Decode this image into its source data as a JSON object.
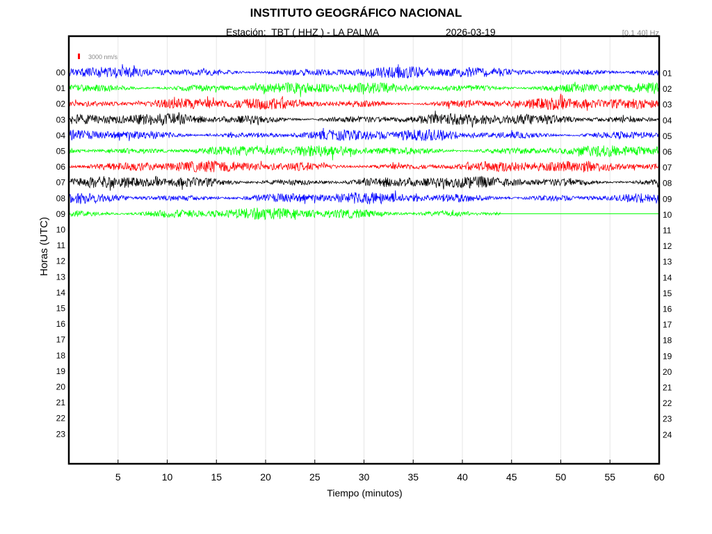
{
  "title": "INSTITUTO GEOGRÁFICO NACIONAL",
  "station_label": "Estación:  TBT ( HHZ ) - LA PALMA",
  "date": "2026-03-19",
  "filter": "[0.1 40] Hz",
  "chart_data": {
    "type": "line",
    "title": "INSTITUTO GEOGRÁFICO NACIONAL",
    "xlabel": "Tiempo (minutos)",
    "ylabel": "Horas (UTC)",
    "xlim": [
      0,
      60
    ],
    "x_ticks": [
      5,
      10,
      15,
      20,
      25,
      30,
      35,
      40,
      45,
      50,
      55,
      60
    ],
    "left_labels": [
      "00",
      "01",
      "02",
      "03",
      "04",
      "05",
      "06",
      "07",
      "08",
      "09",
      "10",
      "11",
      "12",
      "13",
      "14",
      "15",
      "16",
      "17",
      "18",
      "19",
      "20",
      "21",
      "22",
      "23"
    ],
    "right_labels": [
      "01",
      "02",
      "03",
      "04",
      "05",
      "06",
      "07",
      "08",
      "09",
      "10",
      "11",
      "12",
      "13",
      "14",
      "15",
      "16",
      "17",
      "18",
      "19",
      "20",
      "21",
      "22",
      "23",
      "24"
    ],
    "grid": true,
    "scale_bar": {
      "label": "3000 nm/s",
      "color": "#ff0000"
    },
    "trace_colors": [
      "#0000ff",
      "#00ff00",
      "#ff0000",
      "#000000"
    ],
    "series": [
      {
        "hour": "00",
        "color": "#0000ff",
        "end_minute": 60
      },
      {
        "hour": "01",
        "color": "#00ff00",
        "end_minute": 60
      },
      {
        "hour": "02",
        "color": "#ff0000",
        "end_minute": 60
      },
      {
        "hour": "03",
        "color": "#000000",
        "end_minute": 60
      },
      {
        "hour": "04",
        "color": "#0000ff",
        "end_minute": 60
      },
      {
        "hour": "05",
        "color": "#00ff00",
        "end_minute": 60
      },
      {
        "hour": "06",
        "color": "#ff0000",
        "end_minute": 60
      },
      {
        "hour": "07",
        "color": "#000000",
        "end_minute": 60
      },
      {
        "hour": "08",
        "color": "#0000ff",
        "end_minute": 60
      },
      {
        "hour": "09",
        "color": "#00ff00",
        "end_minute": 43.9
      }
    ]
  }
}
